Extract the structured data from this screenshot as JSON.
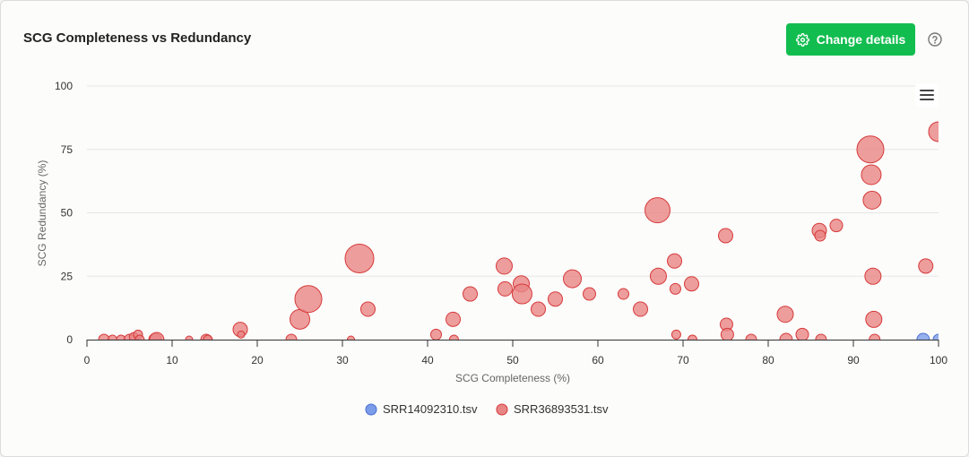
{
  "header": {
    "title": "SCG Completeness vs Redundancy",
    "change_details_label": "Change details",
    "help_icon": "help-circle-icon",
    "settings_icon": "gear-icon",
    "menu_icon": "hamburger-menu-icon"
  },
  "colors": {
    "button": "#12bd4f",
    "series_blue": "#7b9ce8",
    "series_red": "#e88585"
  },
  "chart_data": {
    "type": "scatter",
    "title": "",
    "xlabel": "SCG Completeness (%)",
    "ylabel": "SCG Redundancy (%)",
    "xlim": [
      0,
      100
    ],
    "ylim": [
      0,
      100
    ],
    "xticks": [
      "0",
      "10",
      "20",
      "30",
      "40",
      "50",
      "60",
      "70",
      "80",
      "90",
      "100"
    ],
    "yticks": [
      "0",
      "25",
      "50",
      "75",
      "100"
    ],
    "grid": true,
    "legend": "bottom",
    "series": [
      {
        "name": "SRR14092310.tsv",
        "color": "#7b9ce8",
        "points": [
          {
            "x": 98.2,
            "y": 0,
            "r": 7
          },
          {
            "x": 100,
            "y": 0,
            "r": 6
          }
        ]
      },
      {
        "name": "SRR36893531.tsv",
        "color": "#e88585",
        "points": [
          {
            "x": 2,
            "y": 0,
            "r": 6
          },
          {
            "x": 3,
            "y": 0,
            "r": 5
          },
          {
            "x": 4,
            "y": 0,
            "r": 5
          },
          {
            "x": 5,
            "y": 0,
            "r": 6
          },
          {
            "x": 5.5,
            "y": 1,
            "r": 5
          },
          {
            "x": 6,
            "y": 2,
            "r": 5
          },
          {
            "x": 6.2,
            "y": 0,
            "r": 5
          },
          {
            "x": 8,
            "y": 0,
            "r": 7
          },
          {
            "x": 8.2,
            "y": 0,
            "r": 8
          },
          {
            "x": 12,
            "y": 0,
            "r": 4
          },
          {
            "x": 14,
            "y": 0,
            "r": 6
          },
          {
            "x": 14.2,
            "y": 0,
            "r": 5
          },
          {
            "x": 18,
            "y": 4,
            "r": 8
          },
          {
            "x": 18.1,
            "y": 2,
            "r": 4
          },
          {
            "x": 24,
            "y": 0,
            "r": 6
          },
          {
            "x": 25,
            "y": 8,
            "r": 11
          },
          {
            "x": 26,
            "y": 16,
            "r": 15
          },
          {
            "x": 31,
            "y": 0,
            "r": 4
          },
          {
            "x": 32,
            "y": 32,
            "r": 16
          },
          {
            "x": 33,
            "y": 12,
            "r": 8
          },
          {
            "x": 41,
            "y": 2,
            "r": 6
          },
          {
            "x": 43,
            "y": 8,
            "r": 8
          },
          {
            "x": 43.1,
            "y": 0,
            "r": 5
          },
          {
            "x": 45,
            "y": 18,
            "r": 8
          },
          {
            "x": 49,
            "y": 29,
            "r": 9
          },
          {
            "x": 49.1,
            "y": 20,
            "r": 8
          },
          {
            "x": 51,
            "y": 22,
            "r": 9
          },
          {
            "x": 51.1,
            "y": 18,
            "r": 11
          },
          {
            "x": 53,
            "y": 12,
            "r": 8
          },
          {
            "x": 55,
            "y": 16,
            "r": 8
          },
          {
            "x": 57,
            "y": 24,
            "r": 10
          },
          {
            "x": 59,
            "y": 18,
            "r": 7
          },
          {
            "x": 63,
            "y": 18,
            "r": 6
          },
          {
            "x": 65,
            "y": 12,
            "r": 8
          },
          {
            "x": 67,
            "y": 51,
            "r": 14
          },
          {
            "x": 67.1,
            "y": 25,
            "r": 9
          },
          {
            "x": 69,
            "y": 31,
            "r": 8
          },
          {
            "x": 69.1,
            "y": 20,
            "r": 6
          },
          {
            "x": 69.2,
            "y": 2,
            "r": 5
          },
          {
            "x": 71,
            "y": 22,
            "r": 8
          },
          {
            "x": 71.1,
            "y": 0,
            "r": 5
          },
          {
            "x": 75,
            "y": 41,
            "r": 8
          },
          {
            "x": 75.1,
            "y": 6,
            "r": 7
          },
          {
            "x": 75.2,
            "y": 2,
            "r": 7
          },
          {
            "x": 78,
            "y": 0,
            "r": 6
          },
          {
            "x": 82,
            "y": 10,
            "r": 9
          },
          {
            "x": 82.1,
            "y": 0,
            "r": 7
          },
          {
            "x": 84,
            "y": 2,
            "r": 7
          },
          {
            "x": 86,
            "y": 43,
            "r": 8
          },
          {
            "x": 86.1,
            "y": 41,
            "r": 6
          },
          {
            "x": 86.2,
            "y": 0,
            "r": 6
          },
          {
            "x": 88,
            "y": 45,
            "r": 7
          },
          {
            "x": 92,
            "y": 75,
            "r": 15
          },
          {
            "x": 92.1,
            "y": 65,
            "r": 11
          },
          {
            "x": 92.2,
            "y": 55,
            "r": 10
          },
          {
            "x": 92.3,
            "y": 25,
            "r": 9
          },
          {
            "x": 92.4,
            "y": 8,
            "r": 9
          },
          {
            "x": 92.5,
            "y": 0,
            "r": 6
          },
          {
            "x": 98.5,
            "y": 29,
            "r": 8
          },
          {
            "x": 100,
            "y": 82,
            "r": 11
          }
        ]
      }
    ]
  }
}
